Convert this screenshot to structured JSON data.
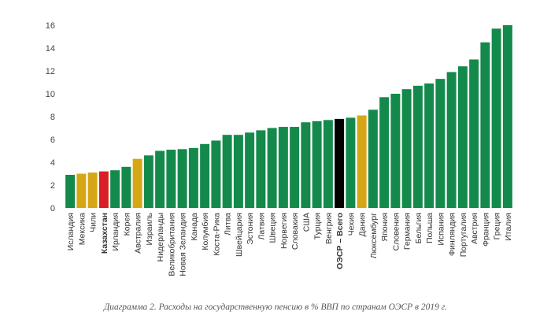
{
  "chart_data": {
    "type": "bar",
    "title": "",
    "xlabel": "",
    "ylabel": "",
    "ylim": [
      0,
      16
    ],
    "yticks": [
      0,
      2,
      4,
      6,
      8,
      10,
      12,
      14,
      16
    ],
    "grid": false,
    "categories": [
      "Исландия",
      "Мексика",
      "Чили",
      "Казахстан",
      "Ирландия",
      "Корея",
      "Австралия",
      "Израиль",
      "Нидерланды",
      "Великобритания",
      "Новая Зеландия",
      "Канада",
      "Колумбия",
      "Коста-Рика",
      "Литва",
      "Швейцария",
      "Эстония",
      "Латвия",
      "Швеция",
      "Норвегия",
      "Словакия",
      "США",
      "Турция",
      "Венгрия",
      "ОЭСР – Всего",
      "Чехия",
      "Дания",
      "Люксембург",
      "Япония",
      "Словения",
      "Германия",
      "Бельгия",
      "Польша",
      "Испания",
      "Финляндия",
      "Португалия",
      "Австрия",
      "Франция",
      "Греция",
      "Италия"
    ],
    "values": [
      2.9,
      3.0,
      3.1,
      3.2,
      3.3,
      3.6,
      4.3,
      4.6,
      5.0,
      5.1,
      5.15,
      5.25,
      5.6,
      5.9,
      6.4,
      6.4,
      6.6,
      6.8,
      7.0,
      7.1,
      7.1,
      7.5,
      7.6,
      7.7,
      7.8,
      7.9,
      8.1,
      8.6,
      9.7,
      10.0,
      10.4,
      10.7,
      10.9,
      11.3,
      11.9,
      12.4,
      13.0,
      14.5,
      15.7,
      16.0
    ],
    "bar_colors": [
      "#138a4b",
      "#d6a714",
      "#d6a714",
      "#d91f26",
      "#138a4b",
      "#138a4b",
      "#d6a714",
      "#138a4b",
      "#138a4b",
      "#138a4b",
      "#138a4b",
      "#138a4b",
      "#138a4b",
      "#138a4b",
      "#138a4b",
      "#138a4b",
      "#138a4b",
      "#138a4b",
      "#138a4b",
      "#138a4b",
      "#138a4b",
      "#138a4b",
      "#138a4b",
      "#138a4b",
      "#000000",
      "#138a4b",
      "#d6a714",
      "#138a4b",
      "#138a4b",
      "#138a4b",
      "#138a4b",
      "#138a4b",
      "#138a4b",
      "#138a4b",
      "#138a4b",
      "#138a4b",
      "#138a4b",
      "#138a4b",
      "#138a4b",
      "#138a4b"
    ],
    "label_colors": {
      "Казахстан": "#e31e24",
      "default": "#333333"
    },
    "bold_labels": [
      "Казахстан",
      "ОЭСР – Всего"
    ]
  },
  "caption": "Диаграмма 2. Расходы на государственную пенсию в % ВВП по странам ОЭСР в 2019 г."
}
